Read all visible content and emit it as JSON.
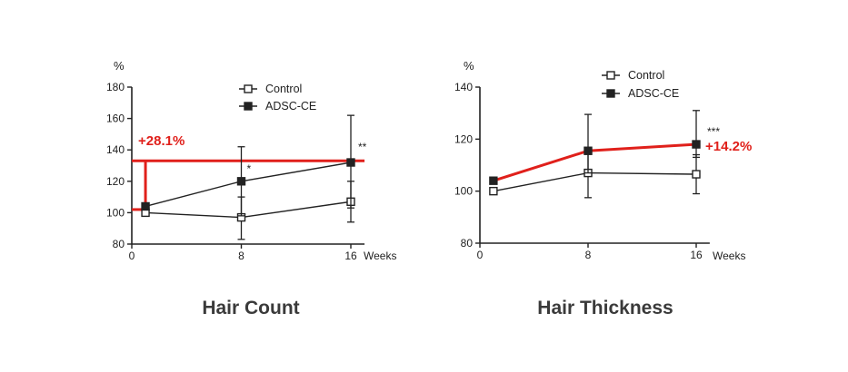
{
  "colors": {
    "axis": "#222222",
    "control": "#222222",
    "adsc": "#e0201b",
    "text": "#222222"
  },
  "chart_data": [
    {
      "type": "line",
      "caption": "Hair Count",
      "ylabel": "%",
      "xlabel": "Weeks",
      "x_ticks": [
        0,
        8,
        16
      ],
      "y_ticks": [
        80,
        100,
        120,
        140,
        160,
        180
      ],
      "ylim": [
        80,
        180
      ],
      "xlim": [
        0,
        17
      ],
      "legend": [
        "Control",
        "ADSC-CE"
      ],
      "legend_position": "top-right",
      "series": [
        {
          "name": "Control",
          "marker": "open-square",
          "x": [
            1,
            8,
            16
          ],
          "y": [
            100,
            97,
            107
          ],
          "err_lo": [
            0,
            14,
            13
          ],
          "err_hi": [
            0,
            13,
            13
          ]
        },
        {
          "name": "ADSC-CE",
          "marker": "filled-square",
          "x": [
            1,
            8,
            16
          ],
          "y": [
            104,
            120,
            132
          ],
          "err_lo": [
            0,
            22,
            29
          ],
          "err_hi": [
            0,
            22,
            30
          ]
        }
      ],
      "significance": [
        {
          "x": 8,
          "text": "*"
        },
        {
          "x": 16,
          "text": "**"
        }
      ],
      "highlight": {
        "text": "+28.1%",
        "from_y": 102,
        "to_y": 133
      }
    },
    {
      "type": "line",
      "caption": "Hair Thickness",
      "ylabel": "%",
      "xlabel": "Weeks",
      "x_ticks": [
        0,
        8,
        16
      ],
      "y_ticks": [
        80,
        100,
        120,
        140
      ],
      "ylim": [
        80,
        140
      ],
      "xlim": [
        0,
        17
      ],
      "legend": [
        "Control",
        "ADSC-CE"
      ],
      "legend_position": "top-right",
      "series": [
        {
          "name": "Control",
          "marker": "open-square",
          "x": [
            1,
            8,
            16
          ],
          "y": [
            100,
            107,
            106.5
          ],
          "err_lo": [
            0,
            9.5,
            7.5
          ],
          "err_hi": [
            0,
            9.5,
            7.5
          ]
        },
        {
          "name": "ADSC-CE",
          "marker": "filled-square",
          "x": [
            1,
            8,
            16
          ],
          "y": [
            104,
            115.5,
            118
          ],
          "err_lo": [
            0,
            8.5,
            5
          ],
          "err_hi": [
            0,
            14,
            13
          ]
        }
      ],
      "significance": [
        {
          "x": 16,
          "text": "***"
        }
      ],
      "highlight": {
        "text": "+14.2%"
      }
    }
  ]
}
